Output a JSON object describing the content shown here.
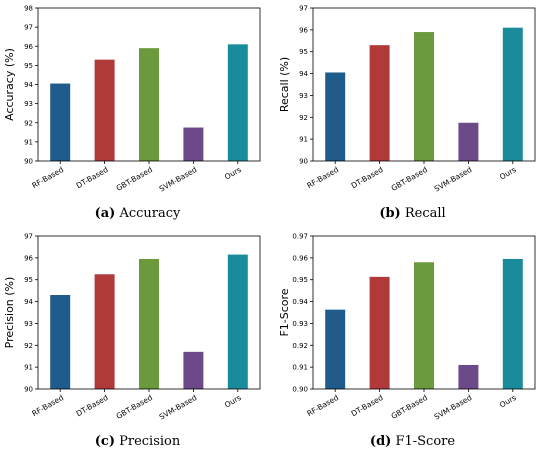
{
  "chart_data": [
    {
      "type": "bar",
      "panel_label": "(a)",
      "caption": "Accuracy",
      "ylabel": "Accuracy (%)",
      "categories": [
        "RF-Based",
        "DT-Based",
        "GBT-Based",
        "SVM-Based",
        "Ours"
      ],
      "values": [
        94.05,
        95.3,
        95.9,
        91.75,
        96.1
      ],
      "ylim": [
        90,
        98
      ],
      "yticks": [
        "90",
        "91",
        "92",
        "93",
        "94",
        "95",
        "96",
        "97",
        "98"
      ],
      "colors": [
        "#1f5c8b",
        "#b03a3a",
        "#6b9a3c",
        "#6c4a8a",
        "#1a8b9a"
      ],
      "grid": false
    },
    {
      "type": "bar",
      "panel_label": "(b)",
      "caption": "Recall",
      "ylabel": "Recall (%)",
      "categories": [
        "RF-Based",
        "DT-Based",
        "GBT-Based",
        "SVM-Based",
        "Ours"
      ],
      "values": [
        94.05,
        95.3,
        95.9,
        91.75,
        96.1
      ],
      "ylim": [
        90,
        97
      ],
      "yticks": [
        "90",
        "91",
        "92",
        "93",
        "94",
        "95",
        "96",
        "97"
      ],
      "colors": [
        "#1f5c8b",
        "#b03a3a",
        "#6b9a3c",
        "#6c4a8a",
        "#1a8b9a"
      ],
      "grid": false
    },
    {
      "type": "bar",
      "panel_label": "(c)",
      "caption": "Precision",
      "ylabel": "Precision (%)",
      "categories": [
        "RF-Based",
        "DT-Based",
        "GBT-Based",
        "SVM-Based",
        "Ours"
      ],
      "values": [
        94.3,
        95.25,
        95.95,
        91.7,
        96.15
      ],
      "ylim": [
        90,
        97
      ],
      "yticks": [
        "90",
        "91",
        "92",
        "93",
        "94",
        "95",
        "96",
        "97"
      ],
      "colors": [
        "#1f5c8b",
        "#b03a3a",
        "#6b9a3c",
        "#6c4a8a",
        "#1a8b9a"
      ],
      "grid": false
    },
    {
      "type": "bar",
      "panel_label": "(d)",
      "caption": "F1-Score",
      "ylabel": "F1-Score",
      "categories": [
        "RF-Based",
        "DT-Based",
        "GBT-Based",
        "SVM-Based",
        "Ours"
      ],
      "values": [
        0.9363,
        0.9513,
        0.958,
        0.911,
        0.9595
      ],
      "ylim": [
        0.9,
        0.97
      ],
      "yticks": [
        "0.90",
        "0.91",
        "0.92",
        "0.93",
        "0.94",
        "0.95",
        "0.96",
        "0.97"
      ],
      "colors": [
        "#1f5c8b",
        "#b03a3a",
        "#6b9a3c",
        "#6c4a8a",
        "#1a8b9a"
      ],
      "grid": false
    }
  ]
}
